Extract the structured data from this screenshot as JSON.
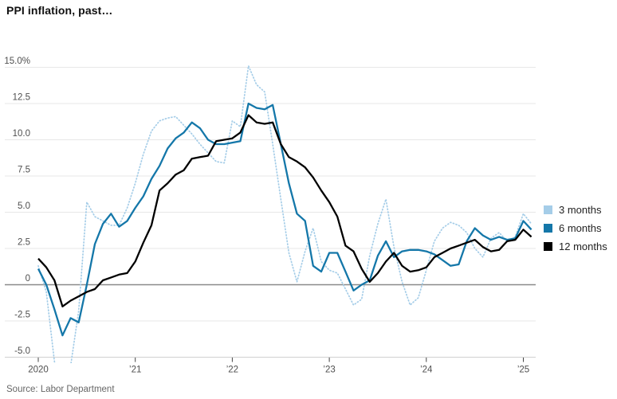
{
  "header": {
    "title": "PPI inflation, past…"
  },
  "source": {
    "text": "Source: Labor Department"
  },
  "legend": {
    "position": "right",
    "items": [
      {
        "label": "3 months",
        "color": "#a5cde8"
      },
      {
        "label": "6 months",
        "color": "#1477a9"
      },
      {
        "label": "12 months",
        "color": "#000000"
      }
    ]
  },
  "colors": {
    "grid": "#e7e7e7",
    "zero_line": "#8a8a8a",
    "axis_line": "#d0d0d0",
    "tick_mark": "#444444",
    "series_3mo": "#a5cde8",
    "series_6mo": "#1477a9",
    "series_12mo": "#000000"
  },
  "chart_data": {
    "type": "line",
    "title": "PPI inflation, past…",
    "unit": "%",
    "frequency": "monthly",
    "start": "2020-01",
    "end": "2025-02",
    "grid": true,
    "zero_line": true,
    "legend_position": "right",
    "ylim": [
      -5,
      15
    ],
    "y_tick_values": [
      15,
      12.5,
      10,
      7.5,
      5,
      2.5,
      0,
      -2.5,
      -5
    ],
    "y_tick_labels": [
      "15.0%",
      "12.5",
      "10.0",
      "7.5",
      "5.0",
      "2.5",
      "0",
      "-2.5",
      "-5.0"
    ],
    "x_tick_labels": [
      "2020",
      "’21",
      "’22",
      "’23",
      "’24",
      "’25"
    ],
    "series": [
      {
        "name": "3 months",
        "style": "dotted",
        "color": "#a5cde8",
        "values": [
          1.3,
          -0.5,
          -5.3,
          -6.9,
          -5.6,
          -1.8,
          5.7,
          4.7,
          4.4,
          4.1,
          4.1,
          5.3,
          7.0,
          9.0,
          10.6,
          11.3,
          11.5,
          11.6,
          11.0,
          10.4,
          9.7,
          9.1,
          8.5,
          8.4,
          11.3,
          10.9,
          15.1,
          13.8,
          13.3,
          9.7,
          5.9,
          2.2,
          0.2,
          2.3,
          3.9,
          1.6,
          1.0,
          0.8,
          -0.3,
          -1.4,
          -1.0,
          2.0,
          4.2,
          5.9,
          2.6,
          0.2,
          -1.4,
          -0.9,
          1.0,
          3.0,
          3.9,
          4.3,
          4.1,
          3.6,
          2.5,
          1.9,
          3.2,
          3.6,
          3.0,
          3.3,
          4.9,
          4.2
        ]
      },
      {
        "name": "6 months",
        "style": "solid",
        "color": "#1477a9",
        "values": [
          1.1,
          0.0,
          -1.7,
          -3.5,
          -2.3,
          -2.6,
          0.0,
          2.8,
          4.2,
          4.9,
          4.0,
          4.4,
          5.3,
          6.1,
          7.3,
          8.2,
          9.4,
          10.1,
          10.5,
          11.2,
          10.8,
          10.0,
          9.7,
          9.7,
          9.8,
          9.9,
          12.5,
          12.2,
          12.1,
          12.4,
          9.7,
          7.0,
          4.9,
          4.4,
          1.3,
          0.9,
          2.2,
          2.2,
          0.9,
          -0.4,
          0.0,
          0.3,
          2.0,
          3.0,
          1.9,
          2.3,
          2.4,
          2.4,
          2.3,
          2.1,
          1.7,
          1.3,
          1.4,
          3.0,
          3.9,
          3.4,
          3.1,
          3.3,
          3.1,
          3.2,
          4.4,
          3.8
        ]
      },
      {
        "name": "12 months",
        "style": "solid",
        "color": "#000000",
        "values": [
          1.8,
          1.2,
          0.3,
          -1.5,
          -1.1,
          -0.8,
          -0.5,
          -0.3,
          0.3,
          0.5,
          0.7,
          0.8,
          1.6,
          2.9,
          4.1,
          6.5,
          7.0,
          7.6,
          7.9,
          8.7,
          8.8,
          8.9,
          9.9,
          10.0,
          10.1,
          10.5,
          11.7,
          11.2,
          11.1,
          11.2,
          9.7,
          8.8,
          8.5,
          8.1,
          7.4,
          6.5,
          5.7,
          4.7,
          2.7,
          2.3,
          1.1,
          0.2,
          0.8,
          1.6,
          2.2,
          1.3,
          0.9,
          1.0,
          1.2,
          1.9,
          2.2,
          2.5,
          2.7,
          2.9,
          3.1,
          2.6,
          2.3,
          2.4,
          3.0,
          3.1,
          3.8,
          3.3
        ]
      }
    ]
  }
}
